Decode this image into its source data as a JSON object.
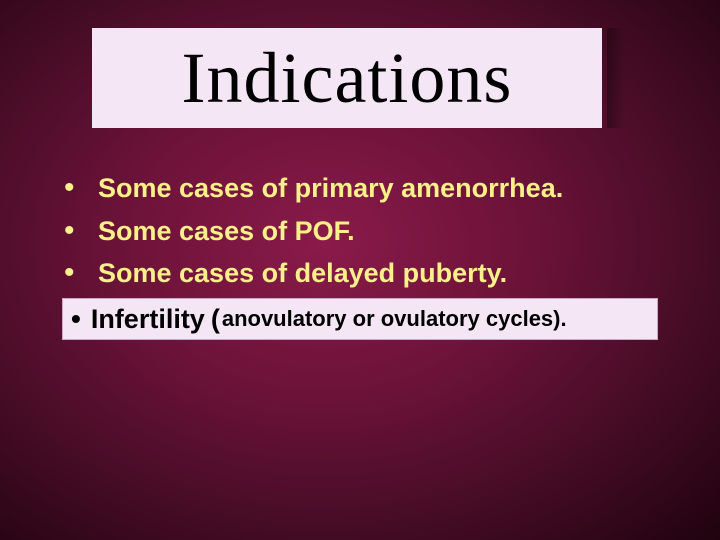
{
  "slide": {
    "background": {
      "type": "radial-gradient",
      "center_color": "#8a1a4a",
      "mid_color": "#4a0d28",
      "edge_color": "#150208"
    },
    "title": {
      "text": "Indications",
      "box_bg": "#f5e6f5",
      "text_color": "#000000",
      "font_family": "Times New Roman",
      "font_size_pt": 54
    },
    "bullets": {
      "color": "#f8f088",
      "font_size_pt": 20,
      "font_weight": "bold",
      "items": [
        {
          "text": "Some cases of primary amenorrhea."
        },
        {
          "text": "Some cases of POF."
        },
        {
          "text": "Some cases of delayed puberty."
        }
      ]
    },
    "callout": {
      "bg": "#f5e6f5",
      "border": "#c8a8c8",
      "text_color": "#000000",
      "main": "Infertility",
      "paren": "(",
      "sub": "anovulatory or ovulatory cycles).",
      "main_font_size_pt": 20,
      "sub_font_size_pt": 16
    }
  }
}
